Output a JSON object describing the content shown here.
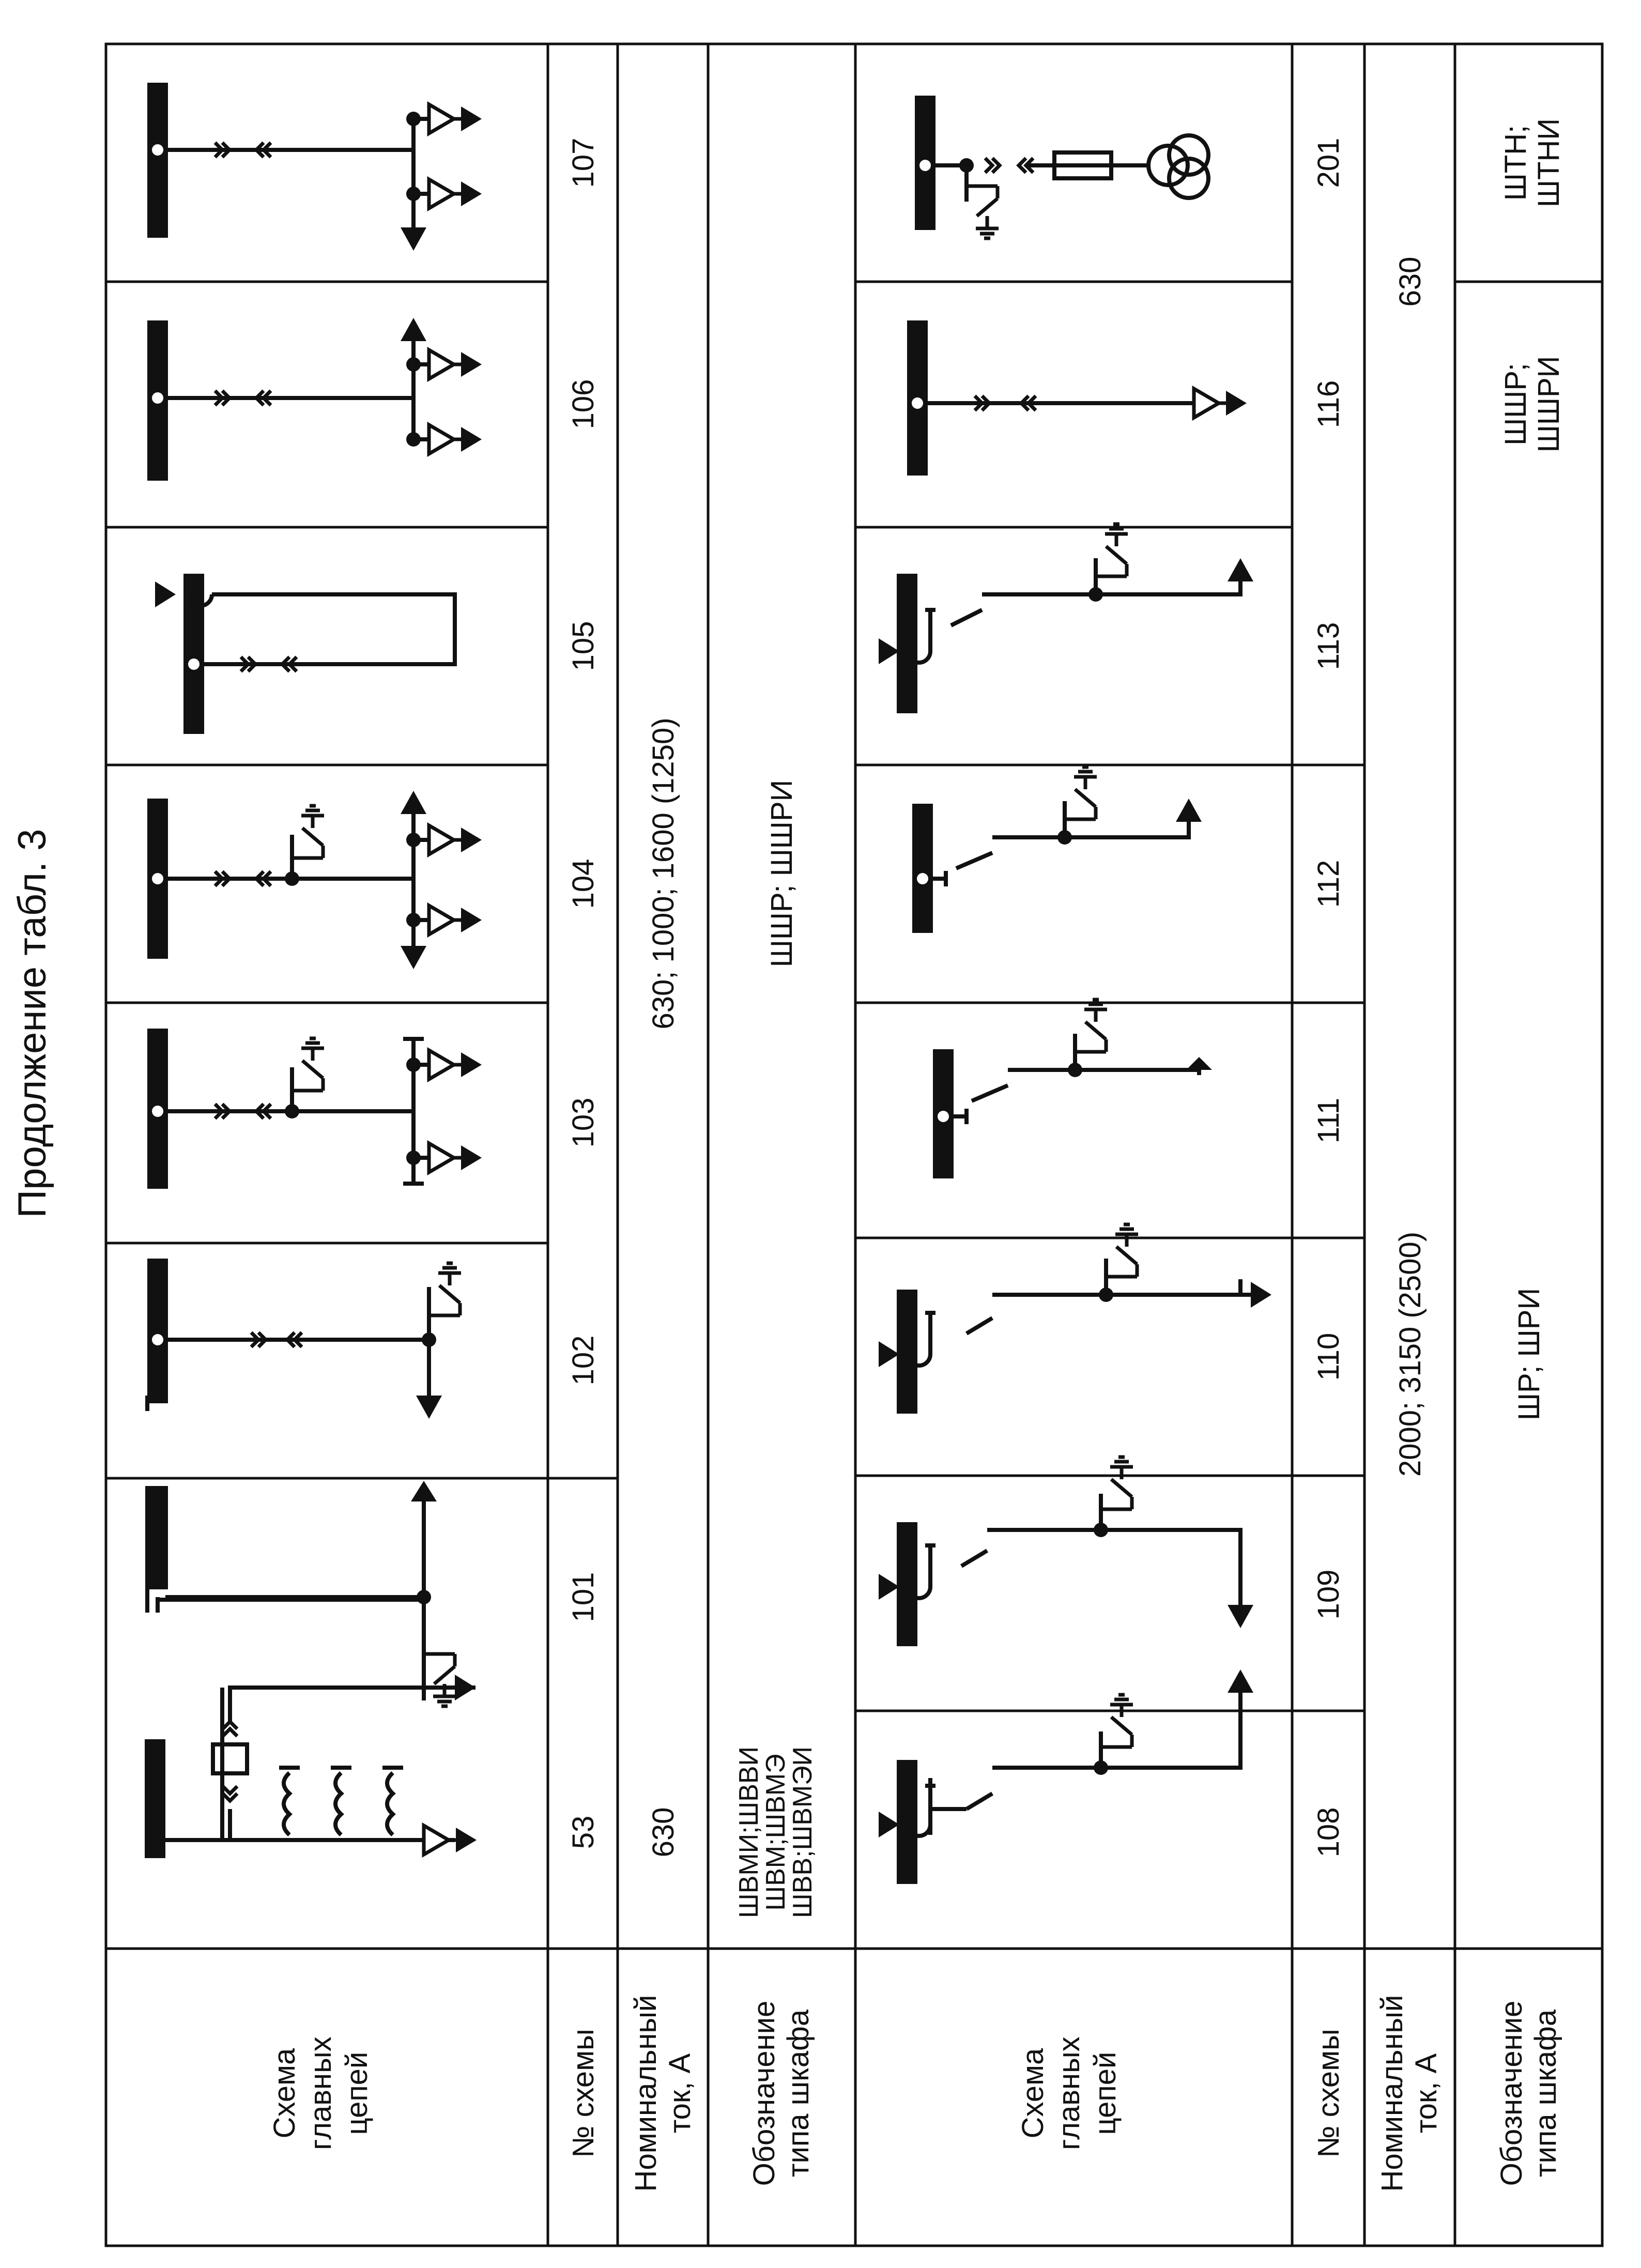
{
  "caption": "Продолжение табл. 3",
  "row_labels": {
    "top": {
      "schema": "Схема главных цепей",
      "number": "№ схемы",
      "current": "Номинальный ток, А",
      "type": "Обозначение типа шкафа"
    },
    "bottom": {
      "schema": "Схема главных цепей",
      "number": "№ схемы",
      "current": "Номинальный ток, А",
      "type": "Обозначение типа шкафа"
    }
  },
  "top_table": {
    "numbers": [
      "53",
      "101",
      "102",
      "103",
      "104",
      "105",
      "106",
      "107"
    ],
    "current_53": "630",
    "current_rest": "630; 1000; 1600 (1250)",
    "type_53": "ШВМИ;ШВВИ ШВМ;ШВМЭ ШВВ;ШВМЭИ",
    "type_rest": "ШШР; ШШРИ"
  },
  "bottom_table": {
    "numbers": [
      "108",
      "109",
      "110",
      "111",
      "112",
      "113",
      "116",
      "201"
    ],
    "current_main": "2000; 3150 (2500)",
    "current_right": "630",
    "type_main": "ШР; ШРИ",
    "type_116": "ШШР; ШШРИ",
    "type_201": "ШТН; ШТНИ"
  },
  "icons": [
    "busbar-icon",
    "withdrawable-contact-icon",
    "ground-switch-icon",
    "cable-terminal-icon",
    "current-transformer-icon",
    "voltage-transformer-icon",
    "fuse-icon",
    "arrow-icon"
  ]
}
